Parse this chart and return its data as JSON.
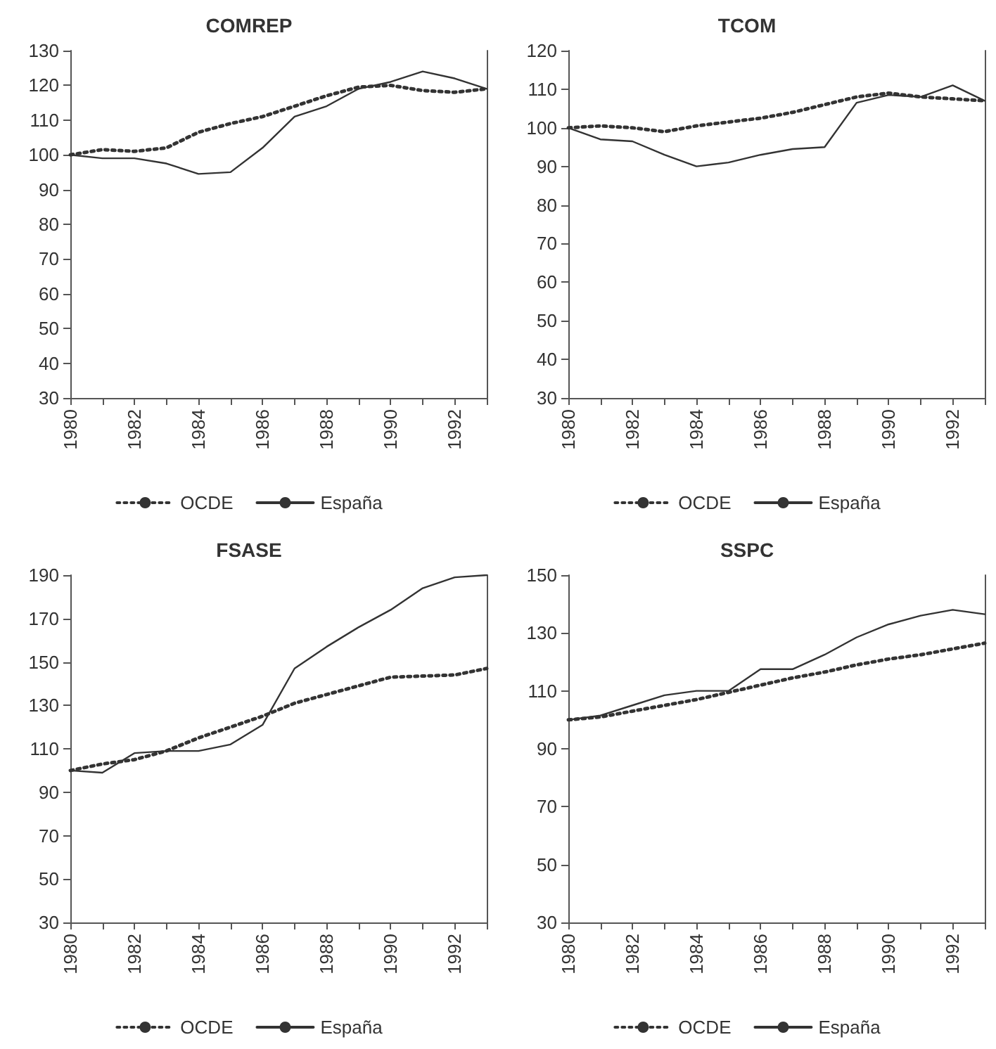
{
  "chart_data": [
    {
      "type": "line",
      "title": "COMREP",
      "x": [
        1980,
        1981,
        1982,
        1983,
        1984,
        1985,
        1986,
        1987,
        1988,
        1989,
        1990,
        1991,
        1992,
        1993
      ],
      "xlim": [
        1980,
        1993
      ],
      "xticks": [
        {
          "value": 1980,
          "label": "1980"
        },
        {
          "value": 1981,
          "label": null
        },
        {
          "value": 1982,
          "label": "1982"
        },
        {
          "value": 1983,
          "label": null
        },
        {
          "value": 1984,
          "label": "1984"
        },
        {
          "value": 1985,
          "label": null
        },
        {
          "value": 1986,
          "label": "1986"
        },
        {
          "value": 1987,
          "label": null
        },
        {
          "value": 1988,
          "label": "1988"
        },
        {
          "value": 1989,
          "label": null
        },
        {
          "value": 1990,
          "label": "1990"
        },
        {
          "value": 1991,
          "label": null
        },
        {
          "value": 1992,
          "label": "1992"
        },
        {
          "value": 1993,
          "label": null
        }
      ],
      "ylim": [
        30,
        130
      ],
      "yticks": [
        30,
        40,
        50,
        60,
        70,
        80,
        90,
        100,
        110,
        120,
        130
      ],
      "legend": "bottom",
      "grid": false,
      "marker": "none",
      "series": [
        {
          "name": "OCDE",
          "color": "#333333",
          "line_style": "dotted",
          "values": [
            100,
            101.5,
            101,
            102,
            106.5,
            109,
            111,
            114,
            117,
            119.5,
            120,
            118.5,
            118,
            119
          ]
        },
        {
          "name": "España",
          "color": "#333333",
          "line_style": "solid",
          "values": [
            100,
            99,
            99,
            97.5,
            94.5,
            95,
            102,
            111,
            114,
            119,
            121,
            124,
            122,
            119
          ]
        }
      ]
    },
    {
      "type": "line",
      "title": "TCOM",
      "x": [
        1980,
        1981,
        1982,
        1983,
        1984,
        1985,
        1986,
        1987,
        1988,
        1989,
        1990,
        1991,
        1992,
        1993
      ],
      "xlim": [
        1980,
        1993
      ],
      "xticks": [
        {
          "value": 1980,
          "label": "1980"
        },
        {
          "value": 1981,
          "label": null
        },
        {
          "value": 1982,
          "label": "1982"
        },
        {
          "value": 1983,
          "label": null
        },
        {
          "value": 1984,
          "label": "1984"
        },
        {
          "value": 1985,
          "label": null
        },
        {
          "value": 1986,
          "label": "1986"
        },
        {
          "value": 1987,
          "label": null
        },
        {
          "value": 1988,
          "label": "1988"
        },
        {
          "value": 1989,
          "label": null
        },
        {
          "value": 1990,
          "label": "1990"
        },
        {
          "value": 1991,
          "label": null
        },
        {
          "value": 1992,
          "label": "1992"
        },
        {
          "value": 1993,
          "label": null
        }
      ],
      "ylim": [
        30,
        120
      ],
      "yticks": [
        30,
        40,
        50,
        60,
        70,
        80,
        90,
        100,
        110,
        120
      ],
      "legend": "bottom",
      "grid": false,
      "marker": "none",
      "series": [
        {
          "name": "OCDE",
          "color": "#333333",
          "line_style": "dotted",
          "values": [
            100,
            100.5,
            100,
            99,
            100.5,
            101.5,
            102.5,
            104,
            106,
            108,
            109,
            108,
            107.5,
            107
          ]
        },
        {
          "name": "España",
          "color": "#333333",
          "line_style": "solid",
          "values": [
            100,
            97,
            96.5,
            93,
            90,
            91,
            93,
            94.5,
            95,
            106.5,
            108.5,
            108,
            111,
            107
          ]
        }
      ]
    },
    {
      "type": "line",
      "title": "FSASE",
      "x": [
        1980,
        1981,
        1982,
        1983,
        1984,
        1985,
        1986,
        1987,
        1988,
        1989,
        1990,
        1991,
        1992,
        1993
      ],
      "xlim": [
        1980,
        1993
      ],
      "xticks": [
        {
          "value": 1980,
          "label": "1980"
        },
        {
          "value": 1981,
          "label": null
        },
        {
          "value": 1982,
          "label": "1982"
        },
        {
          "value": 1983,
          "label": null
        },
        {
          "value": 1984,
          "label": "1984"
        },
        {
          "value": 1985,
          "label": null
        },
        {
          "value": 1986,
          "label": "1986"
        },
        {
          "value": 1987,
          "label": null
        },
        {
          "value": 1988,
          "label": "1988"
        },
        {
          "value": 1989,
          "label": null
        },
        {
          "value": 1990,
          "label": "1990"
        },
        {
          "value": 1991,
          "label": null
        },
        {
          "value": 1992,
          "label": "1992"
        },
        {
          "value": 1993,
          "label": null
        }
      ],
      "ylim": [
        30,
        190
      ],
      "yticks": [
        30,
        50,
        70,
        90,
        110,
        130,
        150,
        170,
        190
      ],
      "legend": "bottom",
      "grid": false,
      "marker": "none",
      "series": [
        {
          "name": "OCDE",
          "color": "#333333",
          "line_style": "dotted",
          "values": [
            100,
            103,
            105,
            109,
            115,
            120,
            125,
            131,
            135,
            139,
            143,
            143.5,
            144,
            147
          ]
        },
        {
          "name": "España",
          "color": "#333333",
          "line_style": "solid",
          "values": [
            100,
            99,
            108,
            109,
            109,
            112,
            121,
            147,
            157,
            166,
            174,
            184,
            189,
            190
          ]
        }
      ]
    },
    {
      "type": "line",
      "title": "SSPC",
      "x": [
        1980,
        1981,
        1982,
        1983,
        1984,
        1985,
        1986,
        1987,
        1988,
        1989,
        1990,
        1991,
        1992,
        1993
      ],
      "xlim": [
        1980,
        1993
      ],
      "xticks": [
        {
          "value": 1980,
          "label": "1980"
        },
        {
          "value": 1981,
          "label": null
        },
        {
          "value": 1982,
          "label": "1982"
        },
        {
          "value": 1983,
          "label": null
        },
        {
          "value": 1984,
          "label": "1984"
        },
        {
          "value": 1985,
          "label": null
        },
        {
          "value": 1986,
          "label": "1986"
        },
        {
          "value": 1987,
          "label": null
        },
        {
          "value": 1988,
          "label": "1988"
        },
        {
          "value": 1989,
          "label": null
        },
        {
          "value": 1990,
          "label": "1990"
        },
        {
          "value": 1991,
          "label": null
        },
        {
          "value": 1992,
          "label": "1992"
        },
        {
          "value": 1993,
          "label": null
        }
      ],
      "ylim": [
        30,
        150
      ],
      "yticks": [
        30,
        50,
        70,
        90,
        110,
        130,
        150
      ],
      "legend": "bottom",
      "grid": false,
      "marker": "none",
      "series": [
        {
          "name": "OCDE",
          "color": "#333333",
          "line_style": "dotted",
          "values": [
            100,
            101,
            103,
            105,
            107,
            109.5,
            112,
            114.5,
            116.5,
            119,
            121,
            122.5,
            124.5,
            126.5
          ]
        },
        {
          "name": "España",
          "color": "#333333",
          "line_style": "solid",
          "values": [
            100,
            101.5,
            105,
            108.5,
            110,
            110,
            117.5,
            117.5,
            122.5,
            128.5,
            133,
            136,
            138,
            136.5
          ]
        }
      ]
    }
  ]
}
